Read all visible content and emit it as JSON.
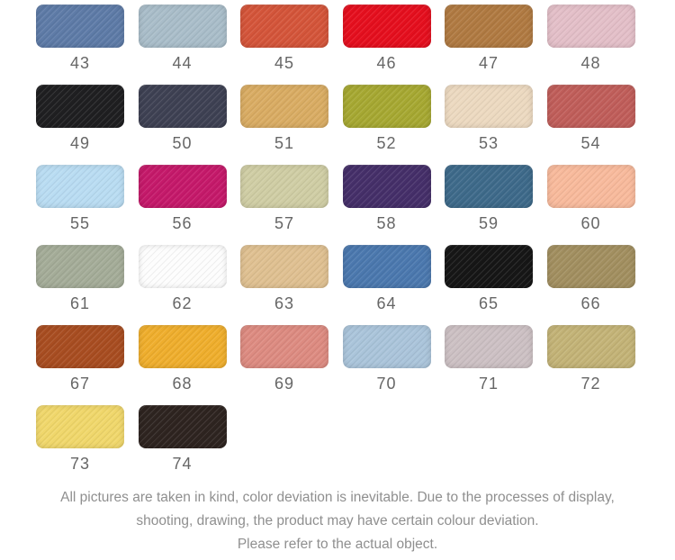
{
  "page": {
    "background": "#ffffff",
    "label_color": "#666666"
  },
  "swatches": [
    {
      "number": "43",
      "color": "#5e7ba7"
    },
    {
      "number": "44",
      "color": "#a9bdc9"
    },
    {
      "number": "45",
      "color": "#d4553a"
    },
    {
      "number": "46",
      "color": "#e50f1e"
    },
    {
      "number": "47",
      "color": "#b07a42"
    },
    {
      "number": "48",
      "color": "#e3bfc8"
    },
    {
      "number": "49",
      "color": "#1f1f21"
    },
    {
      "number": "50",
      "color": "#3e4153"
    },
    {
      "number": "51",
      "color": "#d9ac63"
    },
    {
      "number": "52",
      "color": "#a6a832"
    },
    {
      "number": "53",
      "color": "#ecd9c0"
    },
    {
      "number": "54",
      "color": "#c05e5a"
    },
    {
      "number": "55",
      "color": "#b9dcf2"
    },
    {
      "number": "56",
      "color": "#c5196a"
    },
    {
      "number": "57",
      "color": "#cfcda4"
    },
    {
      "number": "58",
      "color": "#452f69"
    },
    {
      "number": "59",
      "color": "#3e6a8a"
    },
    {
      "number": "60",
      "color": "#f8ba9c"
    },
    {
      "number": "61",
      "color": "#a4ac98"
    },
    {
      "number": "62",
      "color": "#fdfdfd"
    },
    {
      "number": "63",
      "color": "#dfc091"
    },
    {
      "number": "64",
      "color": "#4b78ae"
    },
    {
      "number": "65",
      "color": "#161616"
    },
    {
      "number": "66",
      "color": "#a28f60"
    },
    {
      "number": "67",
      "color": "#a84d21"
    },
    {
      "number": "68",
      "color": "#efae2d"
    },
    {
      "number": "69",
      "color": "#dd8b81"
    },
    {
      "number": "70",
      "color": "#aac4da"
    },
    {
      "number": "71",
      "color": "#ccc0c3"
    },
    {
      "number": "72",
      "color": "#c3b377"
    },
    {
      "number": "73",
      "color": "#f0d76b"
    },
    {
      "number": "74",
      "color": "#2e2420"
    }
  ],
  "disclaimer": {
    "lines": [
      "All pictures are taken in kind, color deviation is inevitable. Due to the processes of display,",
      "shooting, drawing, the product may have certain colour deviation.",
      "Please refer to the actual object."
    ]
  }
}
